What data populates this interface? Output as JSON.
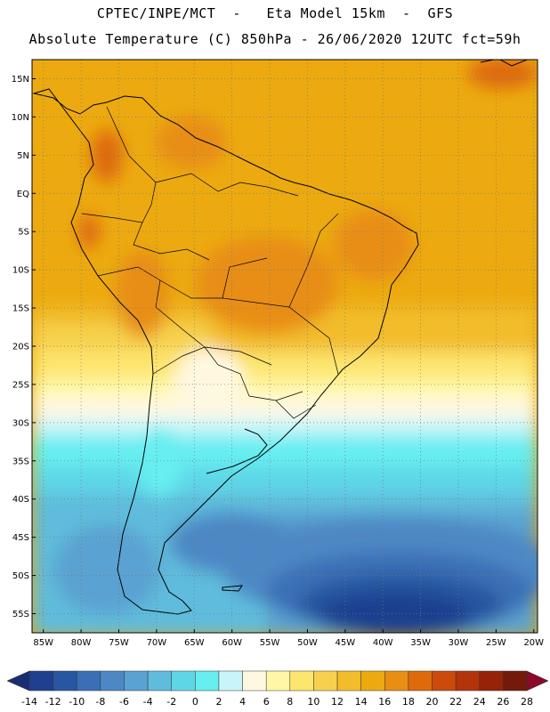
{
  "header": {
    "line1": "CPTEC/INPE/MCT  -   Eta Model 15km  -  GFS",
    "line2": "Absolute Temperature (C) 850hPa - 26/06/2020 12UTC fct=59h"
  },
  "map": {
    "lat_labels": [
      "15N",
      "10N",
      "5N",
      "EQ",
      "5S",
      "10S",
      "15S",
      "20S",
      "25S",
      "30S",
      "35S",
      "40S",
      "45S",
      "50S",
      "55S"
    ],
    "lat_values": [
      15,
      10,
      5,
      0,
      -5,
      -10,
      -15,
      -20,
      -25,
      -30,
      -35,
      -40,
      -45,
      -50,
      -55
    ],
    "lon_labels": [
      "85W",
      "80W",
      "75W",
      "70W",
      "65W",
      "60W",
      "55W",
      "50W",
      "45W",
      "40W",
      "35W",
      "30W",
      "25W",
      "20W"
    ],
    "lon_values": [
      -85,
      -80,
      -75,
      -70,
      -65,
      -60,
      -55,
      -50,
      -45,
      -40,
      -35,
      -30,
      -25,
      -20
    ],
    "lat_range": [
      -57.5,
      17.5
    ],
    "lon_range": [
      -86.5,
      -19.5
    ]
  },
  "colorbar": {
    "labels": [
      "-14",
      "-12",
      "-10",
      "-8",
      "-6",
      "-4",
      "-2",
      "0",
      "2",
      "4",
      "6",
      "8",
      "10",
      "12",
      "14",
      "16",
      "18",
      "20",
      "22",
      "24",
      "26",
      "28"
    ],
    "colors": [
      "#1f3f8f",
      "#2856a0",
      "#3a6fb5",
      "#4d88c5",
      "#5aa2d1",
      "#5fbcdc",
      "#5fd6e6",
      "#66eef0",
      "#c8f5fa",
      "#fff8e0",
      "#fff7a5",
      "#fde56e",
      "#f7d14d",
      "#f2bc2a",
      "#ecaa10",
      "#e88e12",
      "#de6a0c",
      "#cc4a0a",
      "#b3330a",
      "#962208",
      "#741a0a"
    ],
    "under_color": "#1a2d73",
    "over_color": "#8a0a2a"
  }
}
